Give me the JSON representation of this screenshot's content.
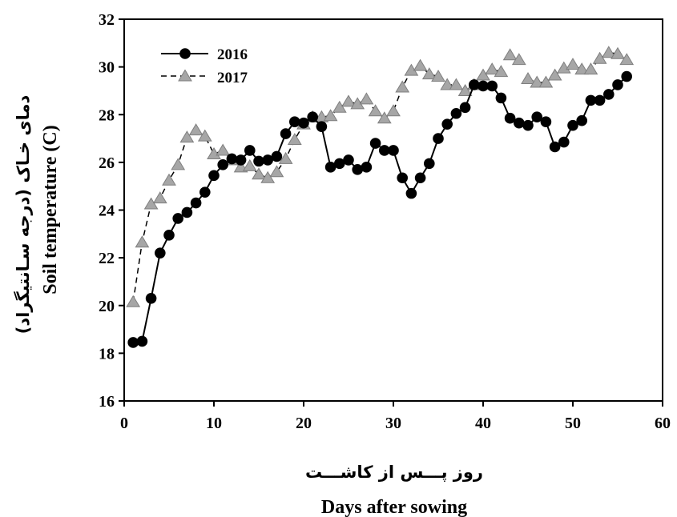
{
  "chart_data": {
    "type": "line",
    "title": "",
    "xlabel": "Days after sowing",
    "xlabel_fa": "روز پـــس از کاشـــت",
    "ylabel": "Soil temperature (C)",
    "ylabel_fa": "دمای خـاک (درجه سـانتیگراد)",
    "xlim": [
      0,
      60
    ],
    "ylim": [
      16,
      32
    ],
    "xticks": [
      0,
      10,
      20,
      30,
      40,
      50,
      60
    ],
    "yticks": [
      16,
      18,
      20,
      22,
      24,
      26,
      28,
      30,
      32
    ],
    "grid": false,
    "legend_position": "top-left",
    "series": [
      {
        "name": "2016",
        "marker": "circle",
        "line_style": "solid",
        "color": "#000000",
        "segments": [
          [
            [
              1,
              18.45
            ],
            [
              2,
              18.5
            ],
            [
              3,
              20.3
            ],
            [
              4,
              22.2
            ],
            [
              5,
              22.95
            ],
            [
              6,
              23.65
            ],
            [
              7,
              23.9
            ],
            [
              8,
              24.3
            ],
            [
              9,
              24.75
            ],
            [
              10,
              25.45
            ],
            [
              11,
              25.9
            ],
            [
              12,
              26.15
            ],
            [
              13,
              26.1
            ],
            [
              14,
              26.5
            ],
            [
              15,
              26.05
            ],
            [
              16,
              26.1
            ],
            [
              17,
              26.25
            ],
            [
              18,
              27.2
            ],
            [
              19,
              27.7
            ],
            [
              20,
              27.65
            ],
            [
              21,
              27.9
            ],
            [
              22,
              27.5
            ],
            [
              23,
              25.8
            ],
            [
              24,
              25.95
            ],
            [
              25,
              26.1
            ],
            [
              26,
              25.7
            ],
            [
              27,
              25.8
            ],
            [
              28,
              26.8
            ],
            [
              29,
              26.5
            ],
            [
              30,
              26.5
            ],
            [
              31,
              25.35
            ],
            [
              32,
              24.7
            ],
            [
              33,
              25.35
            ],
            [
              34,
              25.95
            ],
            [
              35,
              27.0
            ],
            [
              36,
              27.6
            ],
            [
              37,
              28.05
            ],
            [
              38,
              28.3
            ],
            [
              39,
              29.25
            ],
            [
              40,
              29.2
            ],
            [
              41,
              29.2
            ],
            [
              42,
              28.7
            ],
            [
              43,
              27.85
            ],
            [
              44,
              27.65
            ],
            [
              45,
              27.55
            ],
            [
              46,
              27.9
            ],
            [
              47,
              27.7
            ],
            [
              48,
              26.65
            ],
            [
              49,
              26.85
            ],
            [
              50,
              27.55
            ],
            [
              51,
              27.75
            ],
            [
              52,
              28.6
            ],
            [
              53,
              28.6
            ],
            [
              54,
              28.85
            ],
            [
              55,
              29.25
            ],
            [
              56,
              29.6
            ]
          ]
        ]
      },
      {
        "name": "2017",
        "marker": "triangle",
        "line_style": "dashed",
        "color": "#a6a6a6",
        "segments": [
          [
            [
              1,
              20.15
            ],
            [
              2,
              22.65
            ],
            [
              3,
              24.25
            ],
            [
              4,
              24.5
            ],
            [
              5,
              25.25
            ],
            [
              6,
              25.9
            ],
            [
              7,
              27.05
            ],
            [
              8,
              27.35
            ],
            [
              9,
              27.1
            ],
            [
              10,
              26.35
            ],
            [
              11,
              26.5
            ],
            [
              12,
              26.1
            ],
            [
              13,
              25.8
            ],
            [
              14,
              25.85
            ],
            [
              15,
              25.5
            ],
            [
              16,
              25.35
            ],
            [
              17,
              25.6
            ],
            [
              18,
              26.15
            ],
            [
              19,
              26.95
            ],
            [
              20,
              27.6
            ],
            [
              21,
              27.9
            ],
            [
              22,
              27.9
            ],
            [
              23,
              27.95
            ],
            [
              24,
              28.3
            ],
            [
              25,
              28.55
            ],
            [
              26,
              28.45
            ],
            [
              27,
              28.65
            ],
            [
              28,
              28.15
            ],
            [
              29,
              27.85
            ],
            [
              30,
              28.15
            ],
            [
              31,
              29.15
            ],
            [
              32,
              29.85
            ],
            [
              33,
              30.05
            ],
            [
              34,
              29.7
            ],
            [
              35,
              29.6
            ],
            [
              36,
              29.25
            ],
            [
              37,
              29.25
            ],
            [
              38,
              29.0
            ],
            [
              39,
              29.25
            ],
            [
              40,
              29.65
            ],
            [
              41,
              29.9
            ],
            [
              42,
              29.8
            ]
          ],
          [
            [
              43,
              30.5
            ],
            [
              44,
              30.3
            ]
          ],
          [
            [
              45,
              29.5
            ],
            [
              46,
              29.35
            ],
            [
              47,
              29.35
            ],
            [
              48,
              29.65
            ],
            [
              49,
              29.95
            ],
            [
              50,
              30.1
            ],
            [
              51,
              29.9
            ],
            [
              52,
              29.9
            ],
            [
              53,
              30.35
            ],
            [
              54,
              30.6
            ],
            [
              55,
              30.55
            ],
            [
              56,
              30.3
            ]
          ]
        ]
      }
    ]
  }
}
